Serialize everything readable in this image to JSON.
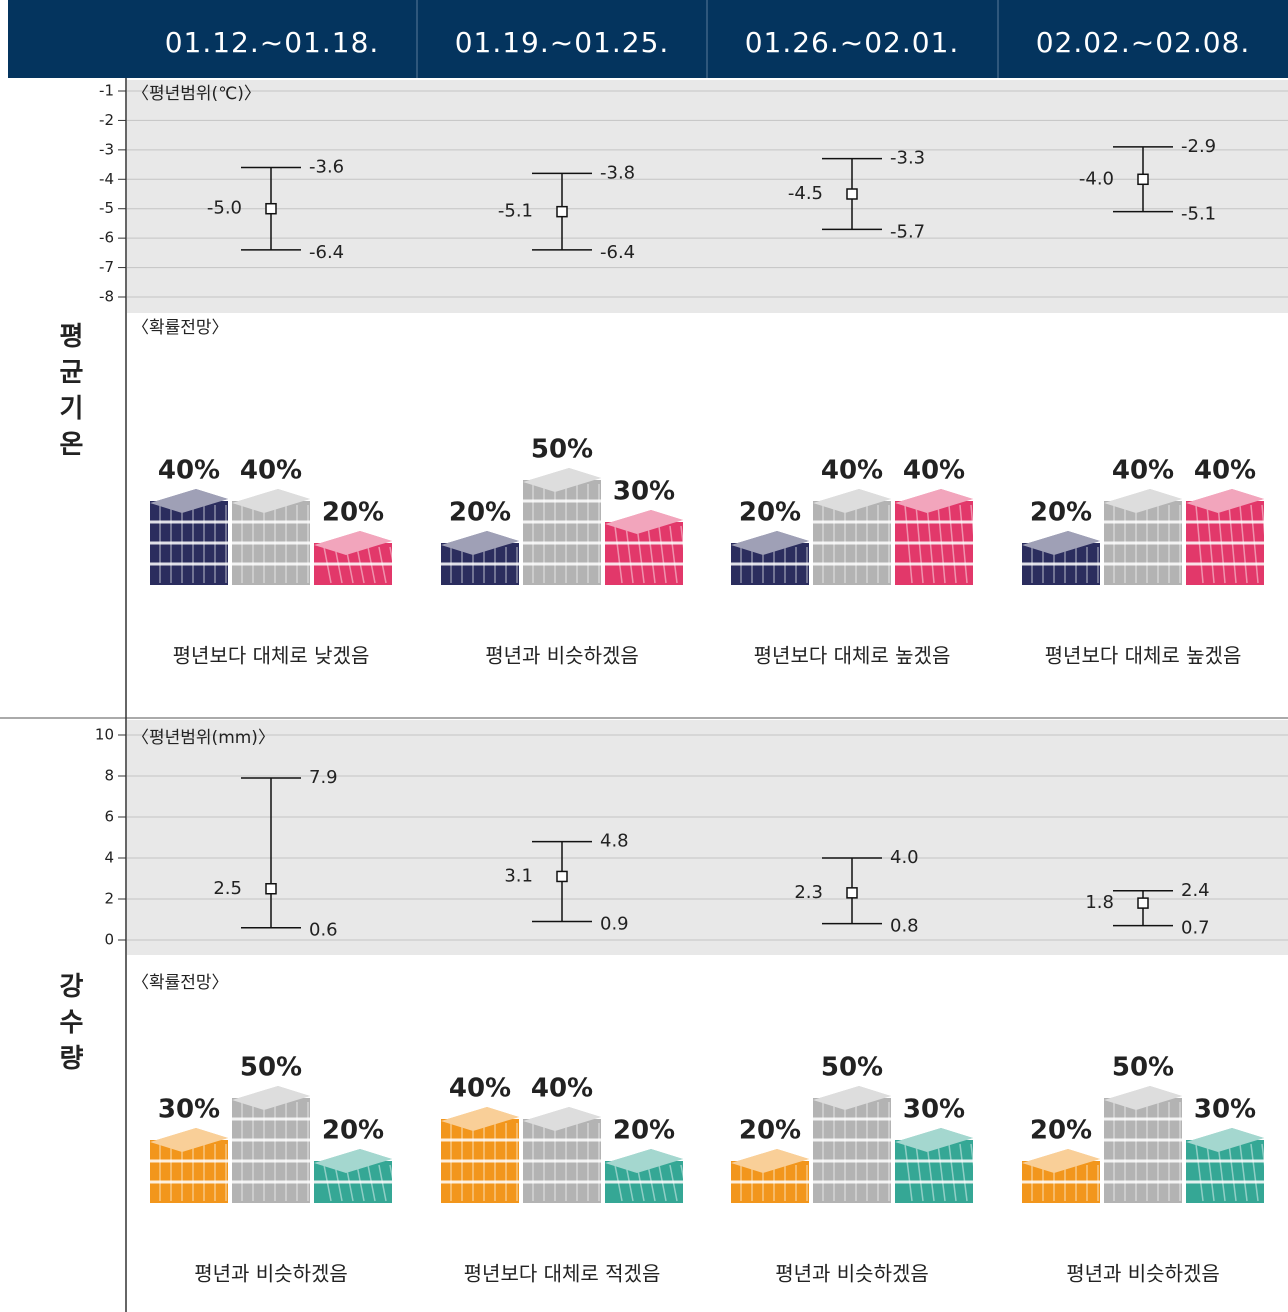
{
  "header": {
    "weeks": [
      "01.12.~01.18.",
      "01.19.~01.25.",
      "01.26.~02.01.",
      "02.02.~02.08."
    ]
  },
  "sections": [
    {
      "label": "평균기온",
      "range_chart": {
        "type": "errorbar",
        "title": "〈평년범위(℃)〉",
        "ylim": [
          -8,
          -1
        ],
        "yticks": [
          -1,
          -2,
          -3,
          -4,
          -5,
          -6,
          -7,
          -8
        ],
        "grid": true,
        "mean": {
          "values": [
            -5.0,
            -5.1,
            -4.5,
            -4.0
          ],
          "value_labels": [
            "-5.0",
            "-5.1",
            "-4.5",
            "-4.0"
          ]
        },
        "upper": {
          "values": [
            -3.6,
            -3.8,
            -3.3,
            -2.9
          ],
          "value_labels": [
            "-3.6",
            "-3.8",
            "-3.3",
            "-2.9"
          ]
        },
        "lower": {
          "values": [
            -6.4,
            -6.4,
            -5.7,
            -5.1
          ],
          "value_labels": [
            "-6.4",
            "-6.4",
            "-5.7",
            "-5.1"
          ]
        }
      },
      "outlook": {
        "type": "stacked-blocks",
        "title": "〈확률전망〉",
        "series": [
          {
            "color": "#2b2d5e",
            "values": [
              40,
              20,
              20,
              20
            ],
            "value_labels": [
              "40%",
              "20%",
              "20%",
              "20%"
            ]
          },
          {
            "color": "#b3b3b3",
            "values": [
              40,
              50,
              40,
              40
            ],
            "value_labels": [
              "40%",
              "50%",
              "40%",
              "40%"
            ]
          },
          {
            "color": "#e2386a",
            "values": [
              20,
              30,
              40,
              40
            ],
            "value_labels": [
              "20%",
              "30%",
              "40%",
              "40%"
            ]
          }
        ],
        "summaries": [
          "평년보다 대체로 낮겠음",
          "평년과 비슷하겠음",
          "평년보다 대체로 높겠음",
          "평년보다 대체로 높겠음"
        ]
      }
    },
    {
      "label": "강수량",
      "range_chart": {
        "type": "errorbar",
        "title": "〈평년범위(mm)〉",
        "ylim": [
          0,
          10
        ],
        "yticks": [
          10,
          8,
          6,
          4,
          2,
          0
        ],
        "grid": true,
        "mean": {
          "values": [
            2.5,
            3.1,
            2.3,
            1.8
          ],
          "value_labels": [
            "2.5",
            "3.1",
            "2.3",
            "1.8"
          ]
        },
        "upper": {
          "values": [
            7.9,
            4.8,
            4.0,
            2.4
          ],
          "value_labels": [
            "7.9",
            "4.8",
            "4.0",
            "2.4"
          ]
        },
        "lower": {
          "values": [
            0.6,
            0.9,
            0.8,
            0.7
          ],
          "value_labels": [
            "0.6",
            "0.9",
            "0.8",
            "0.7"
          ]
        }
      },
      "outlook": {
        "type": "stacked-blocks",
        "title": "〈확률전망〉",
        "series": [
          {
            "color": "#f2961c",
            "values": [
              30,
              40,
              20,
              20
            ],
            "value_labels": [
              "30%",
              "40%",
              "20%",
              "20%"
            ]
          },
          {
            "color": "#b3b3b3",
            "values": [
              50,
              40,
              50,
              50
            ],
            "value_labels": [
              "50%",
              "40%",
              "50%",
              "50%"
            ]
          },
          {
            "color": "#35a795",
            "values": [
              20,
              20,
              30,
              30
            ],
            "value_labels": [
              "20%",
              "20%",
              "30%",
              "30%"
            ]
          }
        ],
        "summaries": [
          "평년과 비슷하겠음",
          "평년보다 대체로 적겠음",
          "평년과 비슷하겠음",
          "평년과 비슷하겠음"
        ]
      }
    }
  ]
}
